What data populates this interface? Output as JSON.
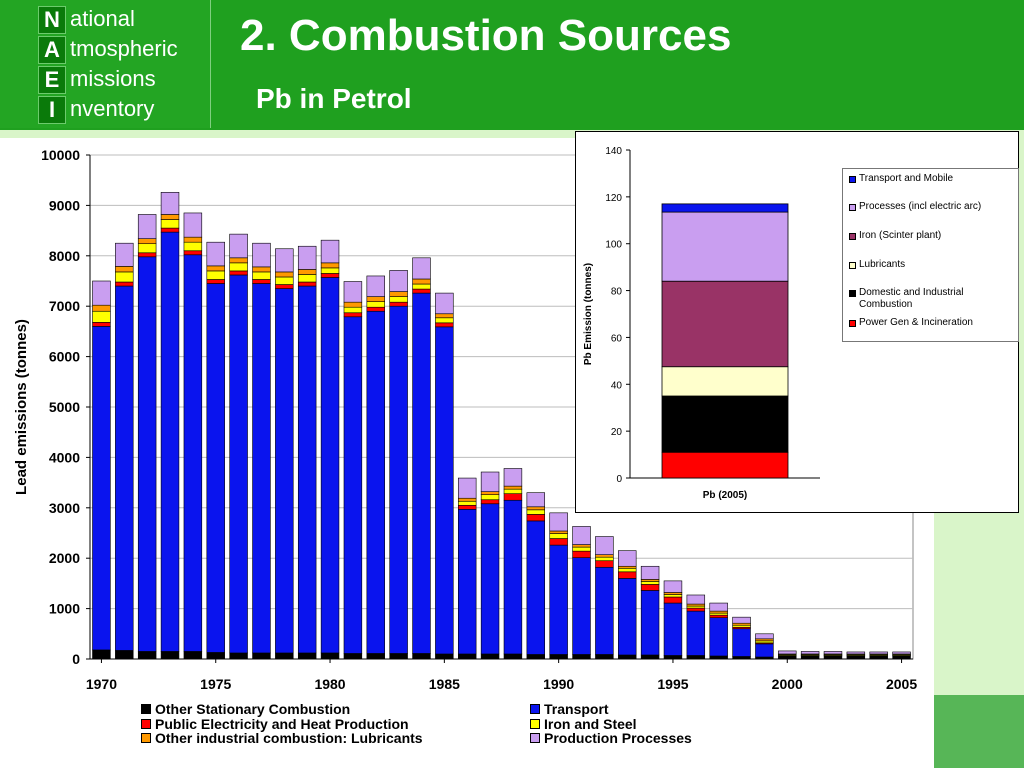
{
  "header": {
    "logo": [
      {
        "letter": "N",
        "rest": "ational"
      },
      {
        "letter": "A",
        "rest": "tmospheric"
      },
      {
        "letter": "E",
        "rest": "missions"
      },
      {
        "letter": "I",
        "rest": "nventory"
      }
    ],
    "title": "2. Combustion Sources",
    "subtitle": "Pb in Petrol"
  },
  "colors": {
    "header_green": "#1fa01f",
    "other_stationary": "#000000",
    "transport": "#0a14ee",
    "public_electricity": "#ff0000",
    "iron_steel": "#ffff00",
    "lubricants": "#ff9900",
    "processes": "#c99ef0",
    "inset_transport": "#0a14ee",
    "inset_processes": "#c99ef0",
    "inset_iron": "#993366",
    "inset_lubricants": "#ffffcc",
    "inset_domestic": "#000000",
    "inset_power": "#ff0000"
  },
  "chart_data": [
    {
      "type": "bar",
      "stacked": true,
      "ylabel": "Lead emissions (tonnes)",
      "xlabel": "",
      "ylim": [
        0,
        10000
      ],
      "yticks": [
        "0",
        "1000",
        "2000",
        "3000",
        "4000",
        "5000",
        "6000",
        "7000",
        "8000",
        "9000",
        "10000"
      ],
      "xticks": [
        "1970",
        "1975",
        "1980",
        "1985",
        "1990",
        "1995",
        "2000",
        "2005"
      ],
      "grid": true,
      "legend_position": "bottom",
      "categories": [
        1970,
        1971,
        1972,
        1973,
        1974,
        1975,
        1976,
        1977,
        1978,
        1979,
        1980,
        1981,
        1982,
        1983,
        1984,
        1985,
        1986,
        1987,
        1988,
        1989,
        1990,
        1991,
        1992,
        1993,
        1994,
        1995,
        1996,
        1997,
        1998,
        1999,
        2000,
        2001,
        2002,
        2003,
        2004,
        2005
      ],
      "series": [
        {
          "name": "Other Stationary Combustion",
          "values": [
            180,
            170,
            150,
            150,
            150,
            130,
            120,
            120,
            120,
            120,
            120,
            110,
            110,
            110,
            110,
            100,
            100,
            100,
            100,
            90,
            90,
            90,
            90,
            80,
            80,
            70,
            70,
            60,
            50,
            40,
            60,
            60,
            60,
            60,
            60,
            60
          ]
        },
        {
          "name": "Transport",
          "values": [
            6420,
            7230,
            7830,
            8320,
            7870,
            7320,
            7500,
            7330,
            7230,
            7280,
            7450,
            6680,
            6790,
            6890,
            7150,
            6490,
            2870,
            2980,
            3050,
            2650,
            2170,
            1920,
            1730,
            1520,
            1280,
            1040,
            880,
            760,
            550,
            260,
            0,
            0,
            0,
            0,
            0,
            0
          ]
        },
        {
          "name": "Public Electricity and Heat Production",
          "values": [
            80,
            80,
            80,
            80,
            80,
            80,
            80,
            80,
            80,
            80,
            80,
            80,
            80,
            80,
            80,
            80,
            80,
            80,
            130,
            130,
            130,
            130,
            130,
            130,
            120,
            120,
            60,
            50,
            30,
            20,
            10,
            10,
            10,
            10,
            10,
            10
          ]
        },
        {
          "name": "Iron and Steel",
          "values": [
            220,
            200,
            180,
            170,
            170,
            170,
            160,
            150,
            150,
            150,
            110,
            110,
            110,
            110,
            100,
            100,
            80,
            100,
            90,
            90,
            100,
            80,
            70,
            70,
            60,
            50,
            40,
            40,
            40,
            40,
            20,
            20,
            20,
            20,
            20,
            20
          ]
        },
        {
          "name": "Other industrial combustion: Lubricants",
          "values": [
            120,
            110,
            100,
            100,
            100,
            100,
            100,
            100,
            100,
            100,
            100,
            100,
            100,
            100,
            100,
            80,
            60,
            60,
            60,
            60,
            50,
            50,
            50,
            40,
            40,
            40,
            40,
            40,
            40,
            40,
            10,
            10,
            10,
            10,
            10,
            10
          ]
        },
        {
          "name": "Production Processes",
          "values": [
            480,
            460,
            480,
            440,
            480,
            470,
            470,
            470,
            460,
            460,
            450,
            410,
            410,
            420,
            420,
            410,
            400,
            390,
            350,
            280,
            360,
            360,
            360,
            310,
            260,
            230,
            180,
            160,
            120,
            100,
            60,
            50,
            50,
            40,
            40,
            40
          ]
        }
      ]
    },
    {
      "type": "bar",
      "stacked": true,
      "ylabel": "Pb Emission (tonnes)",
      "ylim": [
        0,
        140
      ],
      "yticks": [
        "0",
        "20",
        "40",
        "60",
        "80",
        "100",
        "120",
        "140"
      ],
      "categories": [
        "Pb (2005)"
      ],
      "legend_position": "right",
      "series": [
        {
          "name": "Power Gen & Incineration",
          "values": [
            11
          ]
        },
        {
          "name": "Domestic and Industrial Combustion",
          "values": [
            24
          ]
        },
        {
          "name": "Lubricants",
          "values": [
            12.5
          ]
        },
        {
          "name": "Iron (Scinter plant)",
          "values": [
            36.5
          ]
        },
        {
          "name": "Processes (incl electric arc)",
          "values": [
            29.5
          ]
        },
        {
          "name": "Transport and Mobile",
          "values": [
            3.5
          ]
        }
      ],
      "legend_order": [
        "Transport and Mobile",
        "Processes (incl electric arc)",
        "Iron (Scinter plant)",
        "Lubricants",
        "Domestic and Industrial Combustion",
        "Power Gen & Incineration"
      ]
    }
  ]
}
